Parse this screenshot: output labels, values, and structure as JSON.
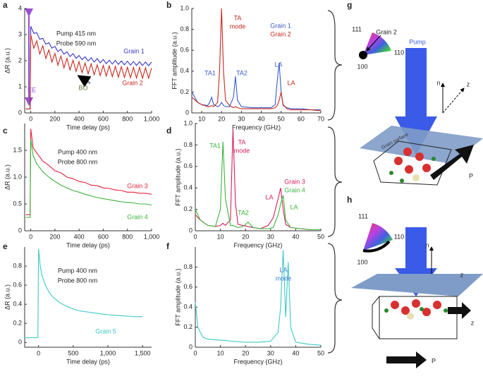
{
  "chart_data": [
    {
      "type": "line",
      "label": "a",
      "xlabel": "Time delay (ps)",
      "ylabel": "ΔR (a.u.)",
      "x": [
        -40,
        -5,
        0,
        25,
        50,
        75,
        100,
        125,
        150,
        175,
        200,
        225,
        250,
        275,
        300,
        325,
        350,
        375,
        400,
        425,
        450,
        475,
        500,
        525,
        550,
        575,
        600,
        625,
        650,
        675,
        700,
        725,
        750,
        775,
        800,
        825,
        850,
        875,
        900,
        925,
        950,
        975,
        1000
      ],
      "series": [
        {
          "name": "Grain 1",
          "color": "#3535c8",
          "values": [
            0.15,
            0.15,
            3.32,
            3.05,
            3.07,
            2.82,
            2.86,
            2.63,
            2.69,
            2.48,
            2.55,
            2.35,
            2.44,
            2.25,
            2.34,
            2.16,
            2.27,
            2.09,
            2.2,
            2.04,
            2.15,
            1.99,
            2.11,
            1.95,
            2.08,
            1.92,
            2.05,
            1.89,
            2.02,
            1.87,
            2.01,
            1.86,
            1.99,
            1.84,
            1.98,
            1.83,
            1.97,
            1.82,
            1.96,
            1.82,
            1.95,
            1.81,
            1.95
          ]
        },
        {
          "name": "Grain 2",
          "color": "#c8281e",
          "values": [
            0.15,
            0.15,
            3.0,
            2.48,
            2.76,
            2.26,
            2.57,
            2.09,
            2.41,
            1.95,
            2.28,
            1.83,
            2.18,
            1.73,
            2.09,
            1.65,
            2.02,
            1.59,
            1.96,
            1.54,
            1.91,
            1.5,
            1.88,
            1.46,
            1.84,
            1.43,
            1.82,
            1.41,
            1.8,
            1.39,
            1.78,
            1.37,
            1.77,
            1.36,
            1.75,
            1.35,
            1.74,
            1.34,
            1.74,
            1.33,
            1.73,
            1.33,
            1.72
          ]
        }
      ],
      "xlim": [
        -50,
        1000
      ],
      "ylim": [
        0,
        4
      ],
      "xticks": [
        0,
        200,
        400,
        600,
        800,
        {
          "value": 1000,
          "label": "1,000"
        }
      ],
      "yticks": [
        0,
        1,
        2,
        3,
        4
      ],
      "annotations": [
        {
          "text": "Pump 415 nm",
          "color": "#222222"
        },
        {
          "text": "Probe 590 nm",
          "color": "#222222"
        },
        {
          "text": "EE",
          "color": "#9a4fd0"
        },
        {
          "text": "BO",
          "color": "#5a7a3a"
        }
      ]
    },
    {
      "type": "line",
      "label": "b",
      "xlabel": "Frequency (GHz)",
      "ylabel": "FFT amplitude (a.u.)",
      "x": [
        5,
        8,
        10,
        13,
        14,
        15,
        16,
        18,
        19,
        20,
        21,
        22,
        24,
        26,
        27,
        28,
        30,
        35,
        40,
        45,
        47,
        48,
        49,
        50,
        51,
        53,
        55,
        60,
        65,
        70
      ],
      "series": [
        {
          "name": "Grain 1",
          "color": "#3a5ad0",
          "values": [
            0.2,
            0.1,
            0.08,
            0.07,
            0.1,
            0.15,
            0.08,
            0.06,
            0.07,
            0.1,
            0.07,
            0.06,
            0.06,
            0.15,
            0.35,
            0.12,
            0.06,
            0.05,
            0.05,
            0.05,
            0.08,
            0.3,
            0.48,
            0.2,
            0.07,
            0.05,
            0.04,
            0.04,
            0.03,
            0.03
          ]
        },
        {
          "name": "Grain 2",
          "color": "#c8281e",
          "values": [
            0.15,
            0.1,
            0.08,
            0.06,
            0.06,
            0.07,
            0.06,
            0.1,
            0.4,
            1.0,
            0.4,
            0.12,
            0.07,
            0.05,
            0.06,
            0.05,
            0.04,
            0.04,
            0.04,
            0.04,
            0.05,
            0.07,
            0.12,
            0.2,
            0.08,
            0.04,
            0.03,
            0.03,
            0.03,
            0.02
          ]
        }
      ],
      "xlim": [
        5,
        70
      ],
      "ylim": [
        0,
        1
      ],
      "xticks": [
        10,
        20,
        30,
        40,
        50,
        60,
        70
      ],
      "yticks": [
        0,
        0.2,
        0.4,
        0.6,
        0.8,
        {
          "value": 1,
          "label": "1.0"
        }
      ],
      "annotations": [
        {
          "text": "TA1",
          "color": "#3a5ad0"
        },
        {
          "text": "TA2",
          "color": "#3a5ad0"
        },
        {
          "text": "LA",
          "color": "#3a5ad0"
        },
        {
          "text": "LA",
          "color": "#c8281e"
        },
        {
          "text": "TA",
          "color": "#c8281e"
        },
        {
          "text": "mode",
          "color": "#c8281e"
        }
      ]
    },
    {
      "type": "line",
      "label": "c",
      "xlabel": "Time delay (ps)",
      "ylabel": "ΔR (a.u.)",
      "x": [
        -40,
        -5,
        0,
        20,
        50,
        100,
        150,
        200,
        250,
        300,
        350,
        400,
        450,
        500,
        550,
        600,
        650,
        700,
        750,
        800,
        850,
        900,
        950,
        1000
      ],
      "series": [
        {
          "name": "Grain 3",
          "color": "#e8203c",
          "values": [
            0.3,
            0.3,
            1.9,
            1.55,
            1.45,
            1.3,
            1.22,
            1.12,
            1.08,
            1.0,
            0.97,
            0.92,
            0.9,
            0.85,
            0.84,
            0.8,
            0.79,
            0.76,
            0.75,
            0.72,
            0.72,
            0.7,
            0.7,
            0.68
          ]
        },
        {
          "name": "Grain 4",
          "color": "#3cb43c",
          "values": [
            0.25,
            0.25,
            1.7,
            1.4,
            1.25,
            1.1,
            1.0,
            0.92,
            0.85,
            0.8,
            0.75,
            0.72,
            0.68,
            0.65,
            0.62,
            0.6,
            0.58,
            0.56,
            0.54,
            0.53,
            0.52,
            0.5,
            0.5,
            0.48
          ]
        }
      ],
      "xlim": [
        -50,
        1000
      ],
      "ylim": [
        0,
        2
      ],
      "xticks": [
        0,
        200,
        400,
        600,
        800,
        {
          "value": 1000,
          "label": "1,000"
        }
      ],
      "yticks": [
        0,
        0.5,
        {
          "value": 1,
          "label": "1.0"
        },
        1.5
      ],
      "annotations": [
        {
          "text": "Pump 400 nm",
          "color": "#222222"
        },
        {
          "text": "Probe 800 nm",
          "color": "#222222"
        }
      ]
    },
    {
      "type": "line",
      "label": "d",
      "xlabel": "Frequency (GHz)",
      "ylabel": "FFT amplitude (a.u.)",
      "x": [
        0,
        2,
        5,
        8,
        10,
        11,
        12,
        14,
        15,
        16,
        17,
        19,
        21,
        23,
        26,
        29,
        31,
        33,
        34,
        35,
        36,
        38,
        42,
        46,
        50
      ],
      "series": [
        {
          "name": "Grain 3",
          "color": "#d8205a",
          "values": [
            0.15,
            0.1,
            0.05,
            0.04,
            0.05,
            0.07,
            0.05,
            0.1,
            0.95,
            0.25,
            0.06,
            0.05,
            0.04,
            0.03,
            0.02,
            0.05,
            0.12,
            0.3,
            0.4,
            0.2,
            0.06,
            0.03,
            0.02,
            0.01,
            0.01
          ]
        },
        {
          "name": "Grain 4",
          "color": "#3cb43c",
          "values": [
            0.2,
            0.1,
            0.05,
            0.04,
            0.2,
            0.83,
            0.3,
            0.05,
            0.05,
            0.04,
            0.03,
            0.04,
            0.08,
            0.03,
            0.02,
            0.02,
            0.03,
            0.15,
            0.25,
            0.33,
            0.1,
            0.03,
            0.02,
            0.01,
            0.01
          ]
        }
      ],
      "xlim": [
        0,
        50
      ],
      "ylim": [
        0,
        1
      ],
      "xticks": [
        0,
        10,
        20,
        30,
        40,
        50
      ],
      "yticks": [
        0,
        0.2,
        0.4,
        0.6,
        0.8,
        {
          "value": 1,
          "label": "1.0"
        }
      ],
      "annotations": [
        {
          "text": "TA1",
          "color": "#3cb43c"
        },
        {
          "text": "TA",
          "color": "#d8205a"
        },
        {
          "text": "mode",
          "color": "#d8205a"
        },
        {
          "text": "TA2",
          "color": "#3cb43c"
        },
        {
          "text": "LA",
          "color": "#d8205a"
        },
        {
          "text": "LA",
          "color": "#3cb43c"
        }
      ]
    },
    {
      "type": "line",
      "label": "e",
      "xlabel": "Time delay (ps)",
      "ylabel": "ΔR (a.u.)",
      "x": [
        -200,
        -10,
        0,
        25,
        50,
        100,
        150,
        200,
        300,
        400,
        500,
        600,
        700,
        800,
        900,
        1000,
        1100,
        1200,
        1300,
        1400,
        1500
      ],
      "series": [
        {
          "name": "Grain 5",
          "color": "#3cc8c8",
          "values": [
            0.05,
            0.05,
            0.98,
            0.8,
            0.7,
            0.6,
            0.53,
            0.48,
            0.42,
            0.38,
            0.35,
            0.33,
            0.32,
            0.31,
            0.3,
            0.29,
            0.285,
            0.28,
            0.275,
            0.27,
            0.27
          ]
        }
      ],
      "xlim": [
        -200,
        1630
      ],
      "ylim": [
        -0.05,
        1
      ],
      "xticks": [
        0,
        500,
        {
          "value": 1000,
          "label": "1,000"
        },
        {
          "value": 1500,
          "label": "1,500"
        }
      ],
      "yticks": [
        0,
        0.2,
        0.4,
        0.6,
        0.8
      ],
      "annotations": [
        {
          "text": "Pump 400 nm",
          "color": "#222222"
        },
        {
          "text": "Probe 800 nm",
          "color": "#222222"
        }
      ]
    },
    {
      "type": "line",
      "label": "f",
      "xlabel": "Frequency (GHz)",
      "ylabel": "FFT amplitude (a.u.)",
      "x": [
        0,
        1,
        3,
        5,
        10,
        15,
        20,
        25,
        30,
        33,
        34,
        35,
        36,
        37,
        38,
        40,
        45,
        50
      ],
      "series": [
        {
          "name": null,
          "color": "#3cc8c8",
          "values": [
            0.45,
            0.2,
            0.1,
            0.08,
            0.07,
            0.06,
            0.05,
            0.05,
            0.06,
            0.15,
            0.4,
            0.97,
            0.3,
            0.85,
            0.2,
            0.05,
            0.03,
            0.02
          ]
        }
      ],
      "xlim": [
        0,
        50
      ],
      "ylim": [
        0,
        1
      ],
      "xticks": [
        0,
        10,
        20,
        30,
        40,
        50
      ],
      "yticks": [
        0,
        0.2,
        0.4,
        0.6,
        0.8
      ],
      "annotations": [
        {
          "text": "LA",
          "color": "#3a7ad0"
        },
        {
          "text": "mode",
          "color": "#3a7ad0"
        }
      ]
    }
  ],
  "diagrams": {
    "g": {
      "label": "g",
      "texts": [
        "111",
        "Grain 2",
        "110",
        "100",
        "Pump",
        "n",
        "z",
        "Grain surface",
        "P"
      ]
    },
    "h": {
      "label": "h",
      "texts": [
        "111",
        "110",
        "100",
        "n",
        "z",
        "z",
        "P"
      ]
    }
  }
}
